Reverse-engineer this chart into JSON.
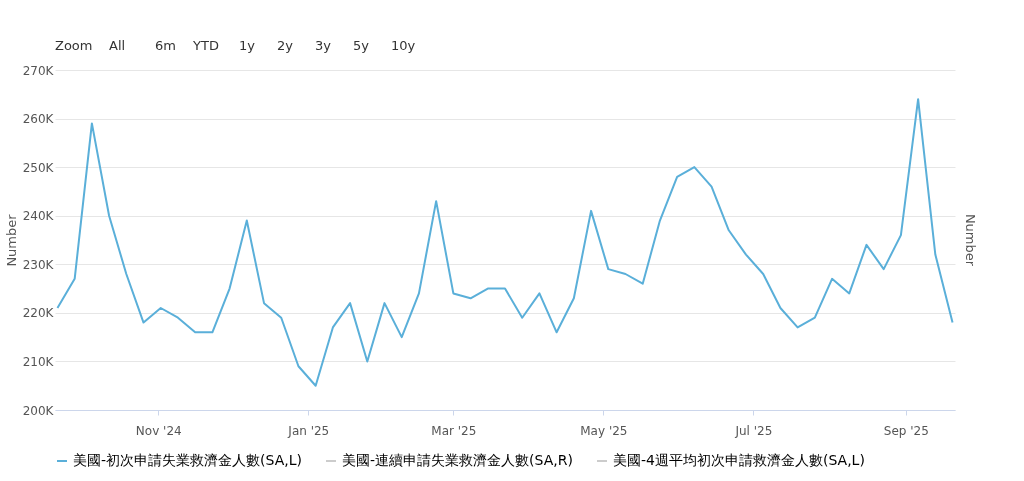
{
  "chart_data": {
    "type": "line",
    "annotations": [
      "Zoom",
      "All",
      "6m",
      "YTD",
      "1y",
      "2y",
      "3y",
      "5y",
      "10y"
    ],
    "ylabel": "Number",
    "y2label": "Number",
    "x": [
      "2024-09-21",
      "2024-09-28",
      "2024-10-05",
      "2024-10-12",
      "2024-10-19",
      "2024-10-26",
      "2024-11-02",
      "2024-11-09",
      "2024-11-16",
      "2024-11-23",
      "2024-11-30",
      "2024-12-07",
      "2024-12-14",
      "2024-12-21",
      "2024-12-28",
      "2025-01-04",
      "2025-01-11",
      "2025-01-18",
      "2025-01-25",
      "2025-02-01",
      "2025-02-08",
      "2025-02-15",
      "2025-02-22",
      "2025-03-01",
      "2025-03-08",
      "2025-03-15",
      "2025-03-22",
      "2025-03-29",
      "2025-04-05",
      "2025-04-12",
      "2025-04-19",
      "2025-04-26",
      "2025-05-03",
      "2025-05-10",
      "2025-05-17",
      "2025-05-24",
      "2025-05-31",
      "2025-06-07",
      "2025-06-14",
      "2025-06-21",
      "2025-06-28",
      "2025-07-05",
      "2025-07-12",
      "2025-07-19",
      "2025-07-26",
      "2025-08-02",
      "2025-08-09",
      "2025-08-16",
      "2025-08-23",
      "2025-08-30",
      "2025-09-06",
      "2025-09-13",
      "2025-09-20"
    ],
    "series": [
      {
        "name": "美國-初次申請失業救濟金人數(SA,L)",
        "color": "#5aafd9",
        "values": [
          221000,
          227000,
          259000,
          240000,
          228000,
          218000,
          221000,
          219000,
          216000,
          216000,
          225000,
          239000,
          222000,
          219000,
          209000,
          205000,
          217000,
          222000,
          210000,
          222000,
          215000,
          224000,
          243000,
          224000,
          223000,
          225000,
          225000,
          219000,
          224000,
          216000,
          223000,
          241000,
          229000,
          228000,
          226000,
          239000,
          248000,
          250000,
          246000,
          237000,
          232000,
          228000,
          221000,
          217000,
          219000,
          227000,
          224000,
          234000,
          229000,
          236000,
          264000,
          232000,
          218000
        ]
      },
      {
        "name": "美國-連續申請失業救濟金人數(SA,R)",
        "color": "#cccccc",
        "values": [
          null,
          null,
          null,
          null,
          null,
          null,
          null,
          null,
          null,
          null,
          null,
          null,
          null,
          null,
          null,
          null,
          null,
          null,
          null,
          null,
          null,
          null,
          null,
          null,
          null,
          null,
          null,
          null,
          null,
          null,
          null,
          null,
          null,
          null,
          null,
          null,
          null,
          null,
          null,
          null,
          null,
          null,
          null,
          null,
          null,
          null,
          null,
          null,
          null,
          null,
          null,
          null,
          null
        ]
      },
      {
        "name": "美國-4週平均初次申請救濟金人數(SA,L)",
        "color": "#cccccc",
        "values": [
          null,
          null,
          null,
          null,
          null,
          null,
          null,
          null,
          null,
          null,
          null,
          null,
          null,
          null,
          null,
          null,
          null,
          null,
          null,
          null,
          null,
          null,
          null,
          null,
          null,
          null,
          null,
          null,
          null,
          null,
          null,
          null,
          null,
          null,
          null,
          null,
          null,
          null,
          null,
          null,
          null,
          null,
          null,
          null,
          null,
          null,
          null,
          null,
          null,
          null,
          null,
          null,
          null
        ]
      }
    ],
    "xlim": [
      "2024-09-20",
      "2025-09-21"
    ],
    "xticks": [
      {
        "value": "2024-11-01",
        "label": "Nov '24"
      },
      {
        "value": "2025-01-01",
        "label": "Jan '25"
      },
      {
        "value": "2025-03-01",
        "label": "Mar '25"
      },
      {
        "value": "2025-05-01",
        "label": "May '25"
      },
      {
        "value": "2025-07-01",
        "label": "Jul '25"
      },
      {
        "value": "2025-09-01",
        "label": "Sep '25"
      }
    ],
    "ylim": [
      200000,
      270000
    ],
    "yticks": [
      {
        "value": 200000,
        "label": "200K"
      },
      {
        "value": 210000,
        "label": "210K"
      },
      {
        "value": 220000,
        "label": "220K"
      },
      {
        "value": 230000,
        "label": "230K"
      },
      {
        "value": 240000,
        "label": "240K"
      },
      {
        "value": 250000,
        "label": "250K"
      },
      {
        "value": 260000,
        "label": "260K"
      },
      {
        "value": 270000,
        "label": "270K"
      }
    ],
    "grid": "y",
    "legend": "bottom",
    "marker": "none",
    "line_style": "solid"
  }
}
